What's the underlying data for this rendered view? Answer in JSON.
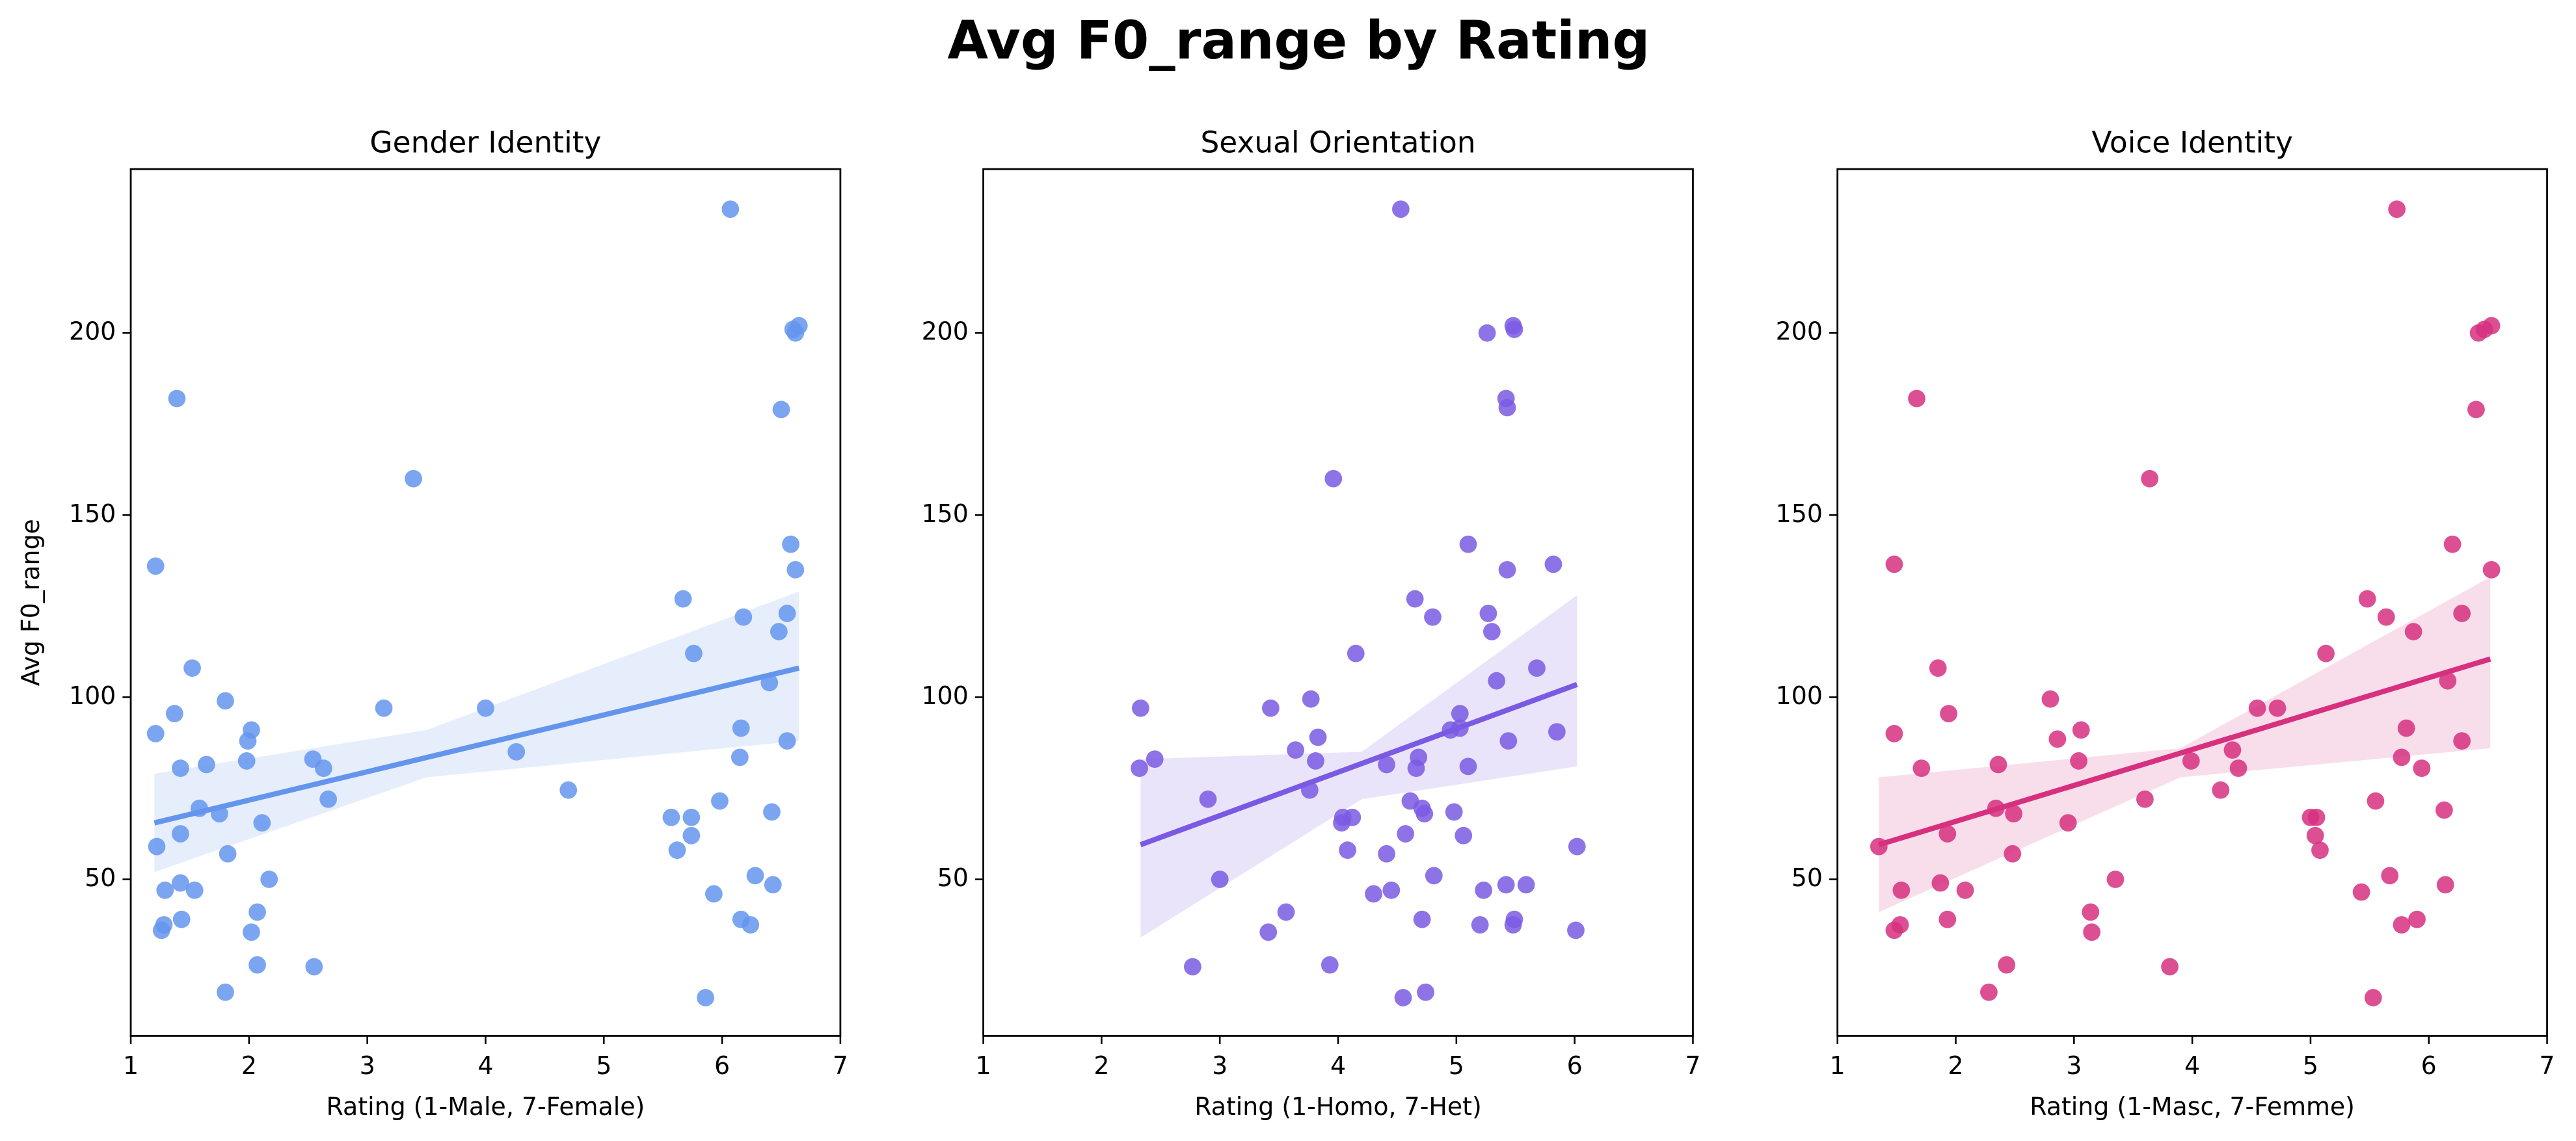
{
  "title": "Avg F0_range by Rating",
  "chart_data": [
    {
      "type": "scatter",
      "title": "Gender Identity",
      "x_label": "Rating (1-Male, 7-Female)",
      "y_label": "Avg F0_range",
      "color": "#6495ed",
      "xlim": [
        1,
        7
      ],
      "ylim": [
        7,
        245
      ],
      "xticks": [
        1,
        2,
        3,
        4,
        5,
        6,
        7
      ],
      "yticks": [
        50,
        100,
        150,
        200
      ],
      "x": [
        6.07,
        1.39,
        3.39,
        1.21,
        6.6,
        6.65,
        6.62,
        6.5,
        6.58,
        6.62,
        6.55,
        6.18,
        6.48,
        5.67,
        5.76,
        1.52,
        6.4,
        1.8,
        3.14,
        4.0,
        1.37,
        6.16,
        2.02,
        1.21,
        1.99,
        6.55,
        4.26,
        2.54,
        6.15,
        1.98,
        1.64,
        2.63,
        1.42,
        4.7,
        2.67,
        5.98,
        1.58,
        1.75,
        6.42,
        5.74,
        5.57,
        2.11,
        1.42,
        5.74,
        1.22,
        5.62,
        1.82,
        6.28,
        2.17,
        1.42,
        6.43,
        1.29,
        1.54,
        5.93,
        2.07,
        1.43,
        6.16,
        6.24,
        1.28,
        1.26,
        2.02,
        2.07,
        2.55,
        1.8,
        5.86
      ],
      "values": [
        234,
        182,
        160,
        136,
        201,
        202,
        200,
        179,
        142,
        135,
        123,
        122,
        118,
        127,
        112,
        108,
        104,
        99,
        97,
        97,
        95.5,
        91.5,
        91,
        90,
        88,
        88,
        85,
        83,
        83.5,
        82.5,
        81.5,
        80.5,
        80.5,
        74.5,
        72,
        71.5,
        69.5,
        68,
        68.5,
        67,
        67,
        65.5,
        62.5,
        62,
        59,
        58,
        57,
        51,
        50,
        49,
        48.5,
        47,
        47,
        46,
        41,
        39,
        39,
        37.5,
        37.5,
        36,
        35.5,
        26.5,
        26,
        19,
        17.5
      ],
      "trend": {
        "x": [
          1.2,
          6.65
        ],
        "values": [
          65.5,
          108
        ]
      },
      "band": {
        "x": [
          1.2,
          3.5,
          6.65
        ],
        "lower": [
          52,
          78,
          88
        ],
        "upper": [
          79,
          91,
          129
        ]
      }
    },
    {
      "type": "scatter",
      "title": "Sexual Orientation",
      "x_label": "Rating (1-Homo, 7-Het)",
      "color": "#7a5ae3",
      "xlim": [
        1,
        7
      ],
      "ylim": [
        7,
        245
      ],
      "xticks": [
        1,
        2,
        3,
        4,
        5,
        6,
        7
      ],
      "yticks": [
        50,
        100,
        150,
        200
      ],
      "x": [
        4.53,
        5.26,
        5.48,
        5.49,
        5.42,
        5.43,
        3.96,
        5.1,
        5.82,
        5.43,
        4.65,
        5.27,
        4.8,
        5.3,
        4.15,
        5.68,
        5.34,
        3.77,
        2.33,
        3.43,
        5.03,
        5.85,
        4.95,
        5.03,
        3.83,
        5.44,
        3.64,
        2.45,
        4.68,
        3.81,
        4.41,
        5.1,
        4.66,
        2.32,
        3.76,
        2.9,
        4.61,
        4.71,
        4.73,
        4.98,
        4.04,
        4.12,
        4.03,
        5.06,
        4.57,
        4.08,
        6.02,
        4.41,
        4.81,
        3.0,
        5.42,
        5.59,
        4.45,
        5.23,
        4.3,
        3.56,
        4.71,
        5.49,
        5.48,
        5.2,
        6.01,
        3.41,
        3.93,
        2.77,
        4.74,
        4.55
      ],
      "values": [
        234,
        200,
        202,
        201,
        182,
        179.5,
        160,
        142,
        136.5,
        135,
        127,
        123,
        122,
        118,
        112,
        108,
        104.5,
        99.5,
        97,
        97,
        95.5,
        90.5,
        91,
        91.5,
        89,
        88,
        85.5,
        83,
        83.5,
        82.5,
        81.5,
        81,
        80.5,
        80.5,
        74.5,
        72,
        71.5,
        69.5,
        68,
        68.5,
        67,
        67,
        65.5,
        62,
        62.5,
        58,
        59,
        57,
        51,
        50,
        48.5,
        48.5,
        47,
        47,
        46,
        41,
        39,
        39,
        37.5,
        37.5,
        36,
        35.5,
        26.5,
        26,
        19,
        17.5
      ],
      "trend": {
        "x": [
          2.33,
          6.02
        ],
        "values": [
          59.5,
          103.5
        ]
      },
      "band": {
        "x": [
          2.33,
          4.2,
          6.02
        ],
        "lower": [
          34,
          72,
          81
        ],
        "upper": [
          83,
          85,
          128
        ]
      }
    },
    {
      "type": "scatter",
      "title": "Voice Identity",
      "x_label": "Rating (1-Masc, 7-Femme)",
      "color": "#d6307f",
      "xlim": [
        1,
        7
      ],
      "ylim": [
        7,
        245
      ],
      "xticks": [
        1,
        2,
        3,
        4,
        5,
        6,
        7
      ],
      "yticks": [
        50,
        100,
        150,
        200
      ],
      "x": [
        5.73,
        6.42,
        6.47,
        6.53,
        6.4,
        1.67,
        3.64,
        1.48,
        6.2,
        6.53,
        5.48,
        6.28,
        5.64,
        5.87,
        5.13,
        1.85,
        6.16,
        2.8,
        4.72,
        4.55,
        1.94,
        5.81,
        3.06,
        1.48,
        2.86,
        6.28,
        4.34,
        5.77,
        3.04,
        3.99,
        2.36,
        1.71,
        5.94,
        4.39,
        4.24,
        3.6,
        5.55,
        2.34,
        2.49,
        6.13,
        5.0,
        5.05,
        2.95,
        1.93,
        5.04,
        1.35,
        5.08,
        2.48,
        5.67,
        3.35,
        6.14,
        1.87,
        1.54,
        2.08,
        5.43,
        3.14,
        1.93,
        5.9,
        1.53,
        5.77,
        1.48,
        3.15,
        2.43,
        3.81,
        2.28,
        5.53
      ],
      "values": [
        234,
        200,
        201,
        202,
        179,
        182,
        160,
        136.5,
        142,
        135,
        127,
        123,
        122,
        118,
        112,
        108,
        104.5,
        99.5,
        97,
        97,
        95.5,
        91.5,
        91,
        90,
        88.5,
        88,
        85.5,
        83.5,
        82.5,
        82.5,
        81.5,
        80.5,
        80.5,
        80.5,
        74.5,
        72,
        71.5,
        69.5,
        68,
        69,
        67,
        67,
        65.5,
        62.5,
        62,
        59,
        58,
        57,
        51,
        50,
        48.5,
        49,
        47,
        47,
        46.5,
        41,
        39,
        39,
        37.5,
        37.5,
        36,
        35.5,
        26.5,
        26,
        19,
        17.5
      ],
      "trend": {
        "x": [
          1.35,
          6.52
        ],
        "values": [
          59.5,
          110.5
        ]
      },
      "band": {
        "x": [
          1.35,
          3.9,
          6.52
        ],
        "lower": [
          41,
          78,
          86
        ],
        "upper": [
          78,
          86,
          133
        ]
      }
    }
  ]
}
